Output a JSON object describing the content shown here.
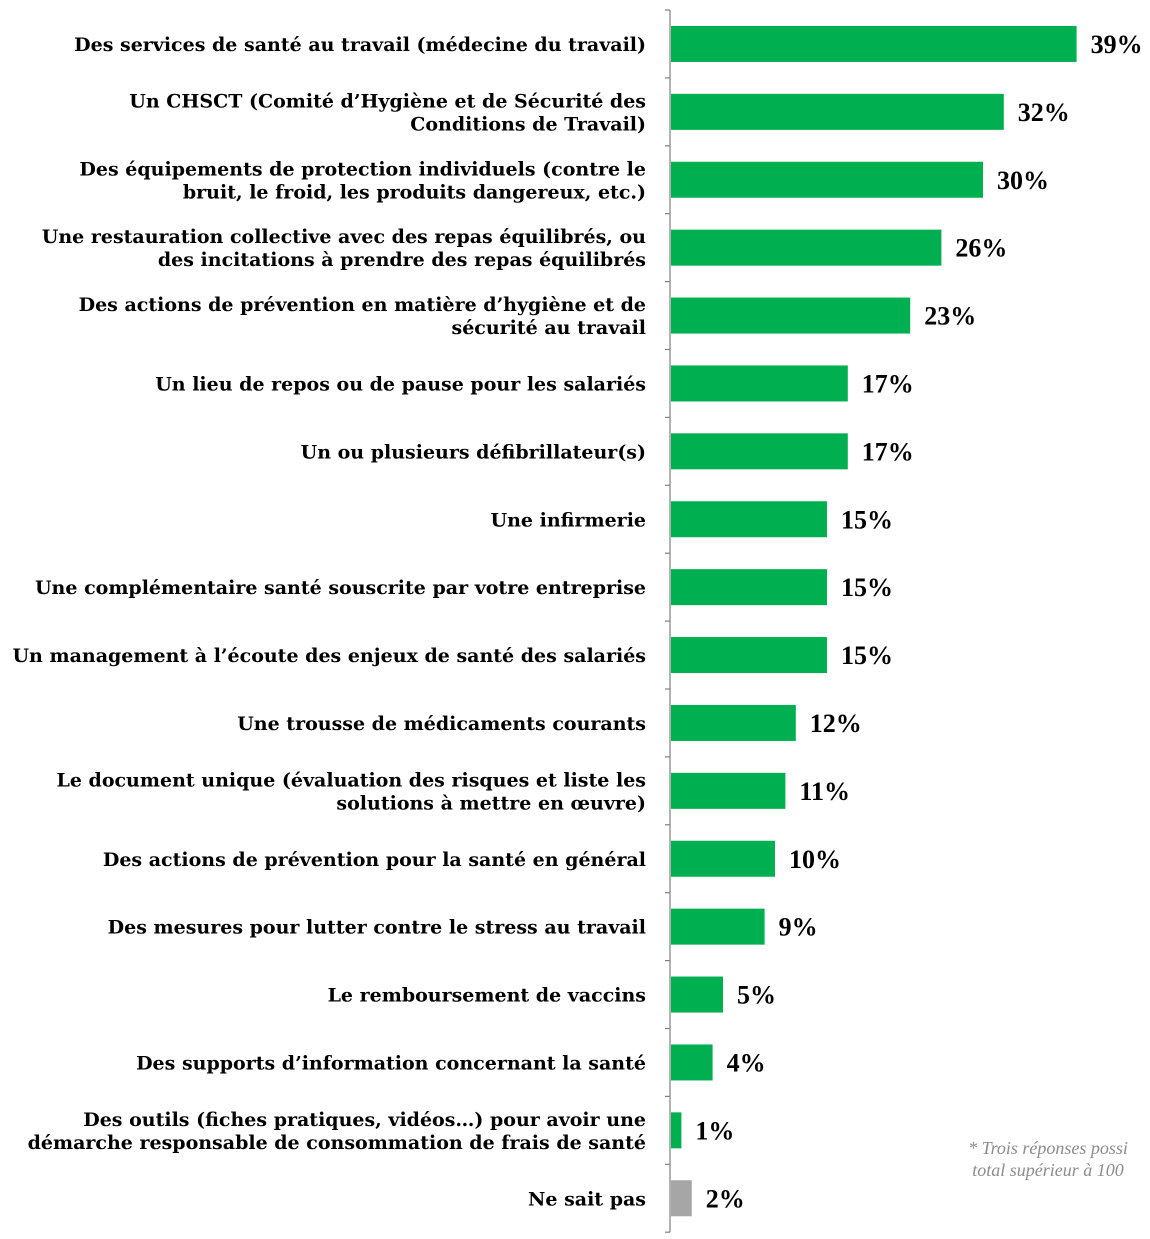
{
  "chart_data": {
    "type": "bar",
    "orientation": "horizontal",
    "categories": [
      "Des services de santé au travail (médecine du travail)",
      "Un CHSCT (Comité d’Hygiène et de Sécurité des Conditions de Travail)",
      "Des équipements de protection individuels (contre le bruit, le froid, les produits dangereux, etc.)",
      "Une restauration collective avec des repas équilibrés, ou des incitations à prendre des repas équilibrés",
      "Des actions de prévention en matière d’hygiène et de sécurité au travail",
      "Un lieu de repos ou de pause pour les salariés",
      "Un ou plusieurs défibrillateur(s)",
      "Une infirmerie",
      "Une complémentaire santé souscrite par votre entreprise",
      "Un management à l’écoute des enjeux de santé des salariés",
      "Une trousse de médicaments courants",
      "Le document unique (évaluation des risques et liste les solutions à mettre en œuvre)",
      "Des actions de prévention pour la santé en général",
      "Des mesures pour lutter contre le stress au travail",
      "Le remboursement de vaccins",
      "Des supports d’information concernant la santé",
      "Des outils (fiches pratiques, vidéos…) pour avoir une démarche responsable de consommation de frais de santé",
      "Ne sait pas"
    ],
    "label_lines": [
      [
        "Des services de santé au travail (médecine du travail)"
      ],
      [
        "Un CHSCT (Comité d’Hygiène et de Sécurité des",
        "Conditions de Travail)"
      ],
      [
        "Des équipements de protection individuels (contre le",
        "bruit, le froid, les produits dangereux, etc.)"
      ],
      [
        "Une restauration collective avec des repas équilibrés, ou",
        "des incitations à prendre des repas équilibrés"
      ],
      [
        "Des actions de prévention en matière d’hygiène et de",
        "sécurité au travail"
      ],
      [
        "Un lieu de repos ou de pause pour les salariés"
      ],
      [
        "Un ou plusieurs défibrillateur(s)"
      ],
      [
        "Une infirmerie"
      ],
      [
        "Une complémentaire santé souscrite par votre entreprise"
      ],
      [
        "Un management à l’écoute des enjeux de santé des salariés"
      ],
      [
        "Une trousse de médicaments courants"
      ],
      [
        "Le document unique (évaluation des risques et liste les",
        "solutions à mettre en œuvre)"
      ],
      [
        "Des actions de prévention pour la santé en général"
      ],
      [
        "Des mesures pour lutter contre le stress au travail"
      ],
      [
        "Le remboursement de vaccins"
      ],
      [
        "Des supports d’information concernant la santé"
      ],
      [
        "Des outils (fiches pratiques, vidéos…) pour avoir une",
        "démarche responsable de consommation de frais de santé"
      ],
      [
        "Ne sait pas"
      ]
    ],
    "values": [
      39,
      32,
      30,
      26,
      23,
      17,
      17,
      15,
      15,
      15,
      12,
      11,
      10,
      9,
      5,
      4,
      1,
      2
    ],
    "value_labels": [
      "39%",
      "32%",
      "30%",
      "26%",
      "23%",
      "17%",
      "17%",
      "15%",
      "15%",
      "15%",
      "12%",
      "11%",
      "10%",
      "9%",
      "5%",
      "4%",
      "1%",
      "2%"
    ],
    "bar_colors": [
      "#00b050",
      "#00b050",
      "#00b050",
      "#00b050",
      "#00b050",
      "#00b050",
      "#00b050",
      "#00b050",
      "#00b050",
      "#00b050",
      "#00b050",
      "#00b050",
      "#00b050",
      "#00b050",
      "#00b050",
      "#00b050",
      "#00b050",
      "#a6a6a6"
    ],
    "unit": "%",
    "xlim": [
      0,
      40
    ],
    "grid": false,
    "legend": "none"
  },
  "footnote": {
    "line1": "* Trois réponses possi",
    "line2": "total supérieur à 100"
  },
  "colors": {
    "primary_bar": "#00b050",
    "ne_sait_pas_bar": "#a6a6a6",
    "axis": "#808080"
  }
}
